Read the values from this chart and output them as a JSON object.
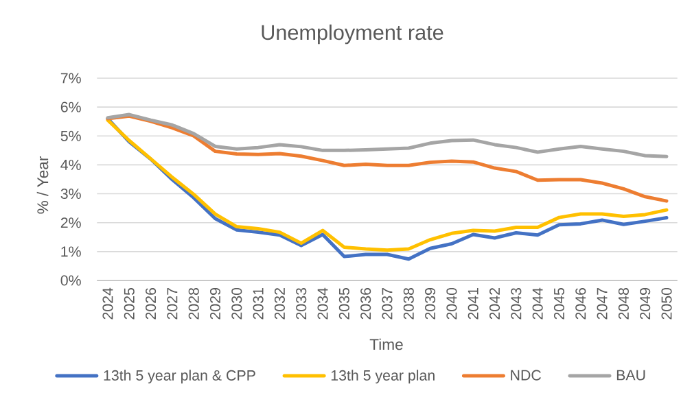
{
  "chart_data": {
    "type": "line",
    "title": "Unemployment rate",
    "xlabel": "Time",
    "ylabel": "% / Year",
    "categories": [
      "2024",
      "2025",
      "2026",
      "2027",
      "2028",
      "2029",
      "2030",
      "2031",
      "2032",
      "2033",
      "2034",
      "2035",
      "2036",
      "2037",
      "2038",
      "2039",
      "2040",
      "2041",
      "2042",
      "2043",
      "2044",
      "2045",
      "2046",
      "2047",
      "2048",
      "2049",
      "2050"
    ],
    "series": [
      {
        "name": "13th 5 year plan & CPP",
        "color": "#4472c4",
        "values": [
          5.6,
          4.8,
          4.2,
          3.49,
          2.86,
          2.14,
          1.75,
          1.67,
          1.57,
          1.21,
          1.59,
          0.83,
          0.9,
          0.9,
          0.74,
          1.11,
          1.27,
          1.59,
          1.47,
          1.65,
          1.57,
          1.93,
          1.96,
          2.09,
          1.94,
          2.05,
          2.17
        ]
      },
      {
        "name": "13th 5 year plan",
        "color": "#ffc000",
        "values": [
          5.55,
          4.84,
          4.21,
          3.57,
          2.98,
          2.3,
          1.86,
          1.79,
          1.67,
          1.29,
          1.73,
          1.15,
          1.09,
          1.05,
          1.09,
          1.41,
          1.63,
          1.73,
          1.71,
          1.84,
          1.84,
          2.18,
          2.3,
          2.3,
          2.22,
          2.28,
          2.44
        ]
      },
      {
        "name": "NDC",
        "color": "#ed7d31",
        "values": [
          5.6,
          5.69,
          5.51,
          5.28,
          5.0,
          4.47,
          4.38,
          4.36,
          4.39,
          4.3,
          4.15,
          3.98,
          4.02,
          3.98,
          3.98,
          4.09,
          4.13,
          4.1,
          3.89,
          3.77,
          3.47,
          3.49,
          3.49,
          3.37,
          3.17,
          2.9,
          2.75
        ]
      },
      {
        "name": "BAU",
        "color": "#a5a5a5",
        "values": [
          5.63,
          5.74,
          5.55,
          5.38,
          5.08,
          4.64,
          4.55,
          4.6,
          4.7,
          4.63,
          4.5,
          4.5,
          4.52,
          4.55,
          4.58,
          4.75,
          4.84,
          4.86,
          4.7,
          4.6,
          4.44,
          4.55,
          4.64,
          4.55,
          4.47,
          4.32,
          4.29
        ]
      }
    ],
    "ylim": [
      0,
      7
    ],
    "yticks": [
      {
        "value": 0,
        "label": "0%"
      },
      {
        "value": 1,
        "label": "1%"
      },
      {
        "value": 2,
        "label": "2%"
      },
      {
        "value": 3,
        "label": "3%"
      },
      {
        "value": 4,
        "label": "4%"
      },
      {
        "value": 5,
        "label": "5%"
      },
      {
        "value": 6,
        "label": "6%"
      },
      {
        "value": 7,
        "label": "7%"
      }
    ],
    "grid": "y",
    "legend": "bottom"
  }
}
